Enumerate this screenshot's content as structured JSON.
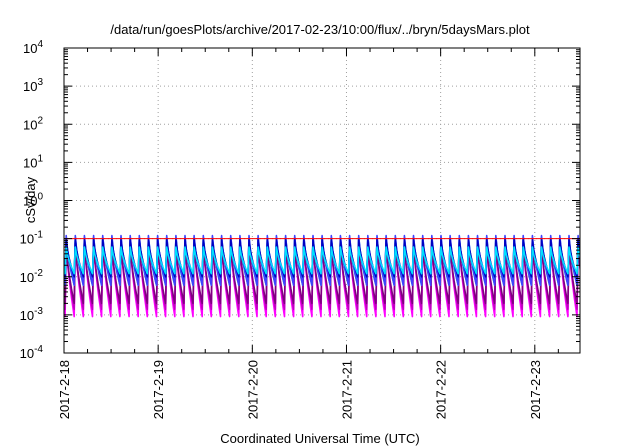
{
  "chart_data": {
    "type": "line",
    "title": "/data/run/goesPlots/archive/2017-02-23/10:00/flux/../bryn/5daysMars.plot",
    "xlabel": "Coordinated Universal Time (UTC)",
    "ylabel": "cSv/day",
    "y_scale": "log",
    "ylim": [
      0.0001,
      10000
    ],
    "y_tick_exponents": [
      "4",
      "3",
      "2",
      "1",
      "0",
      "-1",
      "-2",
      "-3",
      "-4"
    ],
    "x_range_days": [
      0,
      5.48
    ],
    "x_ticks": [
      {
        "label": "2017-2-18",
        "day": 0
      },
      {
        "label": "2017-2-19",
        "day": 1
      },
      {
        "label": "2017-2-20",
        "day": 2
      },
      {
        "label": "2017-2-21",
        "day": 3
      },
      {
        "label": "2017-2-22",
        "day": 4
      },
      {
        "label": "2017-2-23",
        "day": 5
      }
    ],
    "grid": true,
    "legend": "none",
    "oscillation": {
      "cycles_per_day": 10.3,
      "first_peak_day": 0.12
    },
    "series": [
      {
        "color": "#ff00ff",
        "peak": 0.09,
        "trough": 0.0009
      },
      {
        "color": "#c000c0",
        "peak": 0.08,
        "trough": 0.0014
      },
      {
        "color": "#800080",
        "peak": 0.07,
        "trough": 0.002
      },
      {
        "color": "#00c0c0",
        "peak": 0.1,
        "trough": 0.006
      },
      {
        "color": "#00a0ff",
        "peak": 0.11,
        "trough": 0.008
      },
      {
        "color": "#4040ff",
        "peak": 0.12,
        "trough": 0.006
      },
      {
        "color": "#0000c0",
        "peak": 0.095,
        "trough": 0.01
      },
      {
        "color": "#00e0ff",
        "peak": 0.06,
        "trough": 0.012
      }
    ],
    "reference_lines": [
      {
        "value": 0.1,
        "color": "#ff0000"
      }
    ]
  }
}
